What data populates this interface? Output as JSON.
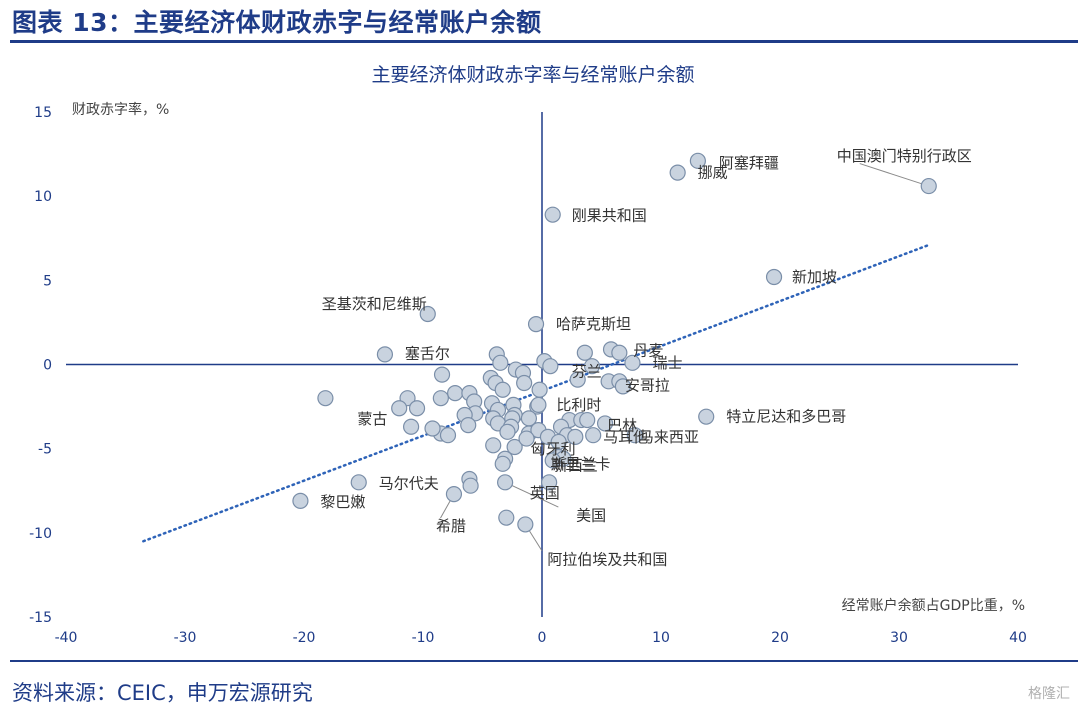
{
  "figure": {
    "title": "图表 13：主要经济体财政赤字与经常账户余额",
    "source": "资料来源：CEIC，申万宏源研究",
    "watermark": "格隆汇"
  },
  "colors": {
    "accent": "#1f3c88",
    "point_fill": "#c9d3df",
    "point_stroke": "#7a8ea8",
    "trend": "#2e63b8"
  },
  "chart_data": {
    "type": "scatter",
    "title": "主要经济体财政赤字率与经常账户余额",
    "xlabel": "经常账户余额占GDP比重，%",
    "ylabel": "财政赤字率，%",
    "xlim": [
      -40,
      40
    ],
    "ylim": [
      -15,
      15
    ],
    "xticks": [
      "-40",
      "-30",
      "-20",
      "-10",
      "0",
      "10",
      "20",
      "30",
      "40"
    ],
    "yticks": [
      "15",
      "10",
      "5",
      "0",
      "-5",
      "-10",
      "-15"
    ],
    "trendline": {
      "x": [
        -33.5,
        32.5
      ],
      "y": [
        -10.5,
        7.1
      ],
      "style": "dotted"
    },
    "labeled_points": [
      {
        "name": "中国澳门特别行政区",
        "x": 32.5,
        "y": 10.6
      },
      {
        "name": "阿塞拜疆",
        "x": 13.1,
        "y": 12.1
      },
      {
        "name": "挪威",
        "x": 11.4,
        "y": 11.4
      },
      {
        "name": "刚果共和国",
        "x": 0.9,
        "y": 8.9
      },
      {
        "name": "新加坡",
        "x": 19.5,
        "y": 5.2
      },
      {
        "name": "圣基茨和尼维斯",
        "x": -9.6,
        "y": 3.0
      },
      {
        "name": "哈萨克斯坦",
        "x": -0.5,
        "y": 2.4
      },
      {
        "name": "丹麦",
        "x": 6.5,
        "y": 0.7
      },
      {
        "name": "瑞士",
        "x": 7.6,
        "y": 0.1
      },
      {
        "name": "芬兰",
        "x": 3.0,
        "y": -0.9
      },
      {
        "name": "安哥拉",
        "x": 6.8,
        "y": -1.3
      },
      {
        "name": "塞舌尔",
        "x": -13.2,
        "y": 0.6
      },
      {
        "name": "比利时",
        "x": -0.3,
        "y": -2.4
      },
      {
        "name": "特立尼达和多巴哥",
        "x": 13.8,
        "y": -3.1
      },
      {
        "name": "蒙古",
        "x": -18.2,
        "y": -2.0
      },
      {
        "name": "巴林",
        "x": 5.3,
        "y": -3.5
      },
      {
        "name": "马耳他",
        "x": 4.3,
        "y": -4.2
      },
      {
        "name": "马来西亚",
        "x": 7.8,
        "y": -4.2
      },
      {
        "name": "匈牙利",
        "x": 1.4,
        "y": -4.6
      },
      {
        "name": "斯里兰卡",
        "x": 1.8,
        "y": -5.6
      },
      {
        "name": "新西兰",
        "x": 0.9,
        "y": -5.7
      },
      {
        "name": "英国",
        "x": -3.3,
        "y": -5.9
      },
      {
        "name": "美国",
        "x": -3.1,
        "y": -7.0
      },
      {
        "name": "马尔代夫",
        "x": -15.4,
        "y": -7.0
      },
      {
        "name": "黎巴嫩",
        "x": -20.3,
        "y": -8.1
      },
      {
        "name": "希腊",
        "x": -7.4,
        "y": -7.7
      },
      {
        "name": "阿拉伯埃及共和国",
        "x": -1.4,
        "y": -9.5
      }
    ],
    "other_points": [
      [
        -3.8,
        0.6
      ],
      [
        -3.5,
        0.1
      ],
      [
        -2.2,
        -0.3
      ],
      [
        -1.6,
        -0.5
      ],
      [
        0.2,
        0.2
      ],
      [
        -4.3,
        -0.8
      ],
      [
        -3.9,
        -1.1
      ],
      [
        -1.5,
        -1.1
      ],
      [
        -8.4,
        -0.6
      ],
      [
        -3.3,
        -1.5
      ],
      [
        -0.2,
        -1.5
      ],
      [
        -7.3,
        -1.7
      ],
      [
        -6.1,
        -1.7
      ],
      [
        -5.7,
        -2.2
      ],
      [
        -4.2,
        -2.3
      ],
      [
        -2.4,
        -2.4
      ],
      [
        -0.4,
        -2.5
      ],
      [
        -8.5,
        -2.0
      ],
      [
        -11.3,
        -2.0
      ],
      [
        -3.7,
        -2.7
      ],
      [
        -5.6,
        -2.9
      ],
      [
        -6.5,
        -3.0
      ],
      [
        -2.3,
        -3.0
      ],
      [
        -2.5,
        -3.2
      ],
      [
        -1.1,
        -3.2
      ],
      [
        2.3,
        -3.3
      ],
      [
        -4.1,
        -3.2
      ],
      [
        -6.2,
        -3.6
      ],
      [
        -3.7,
        -3.5
      ],
      [
        -2.6,
        -3.7
      ],
      [
        -2.9,
        -4.0
      ],
      [
        -1.1,
        -4.1
      ],
      [
        -0.3,
        -3.9
      ],
      [
        1.6,
        -3.7
      ],
      [
        -10.5,
        -2.6
      ],
      [
        -12.0,
        -2.6
      ],
      [
        -8.5,
        -4.1
      ],
      [
        -7.9,
        -4.2
      ],
      [
        -9.2,
        -3.8
      ],
      [
        -11.0,
        -3.7
      ],
      [
        -4.1,
        -4.8
      ],
      [
        -2.3,
        -4.9
      ],
      [
        -1.3,
        -4.4
      ],
      [
        0.5,
        -4.3
      ],
      [
        2.1,
        -4.2
      ],
      [
        2.8,
        -4.3
      ],
      [
        -3.1,
        -5.6
      ],
      [
        -6.1,
        -6.8
      ],
      [
        -6.0,
        -7.2
      ],
      [
        0.6,
        -7.0
      ],
      [
        1.4,
        -5.5
      ],
      [
        3.3,
        -3.3
      ],
      [
        3.8,
        -3.3
      ],
      [
        4.2,
        -0.1
      ],
      [
        5.8,
        0.9
      ],
      [
        5.6,
        -1.0
      ],
      [
        3.6,
        0.7
      ],
      [
        0.7,
        -0.1
      ],
      [
        -3.0,
        -9.1
      ],
      [
        6.5,
        -1.0
      ]
    ]
  }
}
